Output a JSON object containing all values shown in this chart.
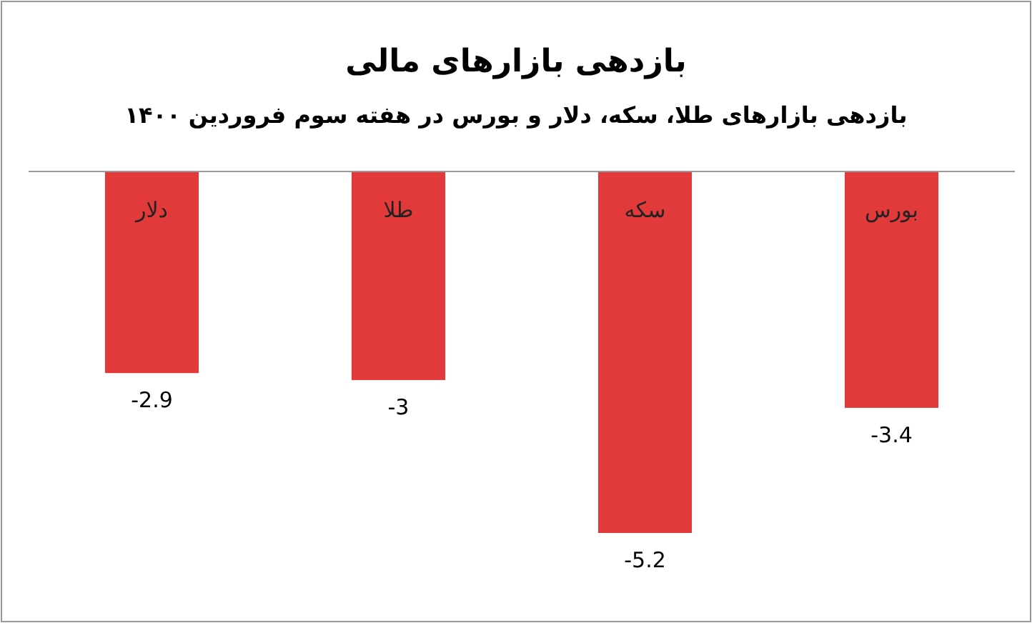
{
  "chart_data": {
    "type": "bar",
    "title": "بازدهی بازارهای مالی",
    "subtitle": "بازدهی بازارهای طلا، سکه، دلار و بورس در هفته سوم فروردین ۱۴۰۰",
    "categories": [
      "دلار",
      "طلا",
      "سکه",
      "بورس"
    ],
    "values": [
      -2.9,
      -3,
      -5.2,
      -3.4
    ],
    "color": "#e23a3a",
    "data_labels": true
  }
}
